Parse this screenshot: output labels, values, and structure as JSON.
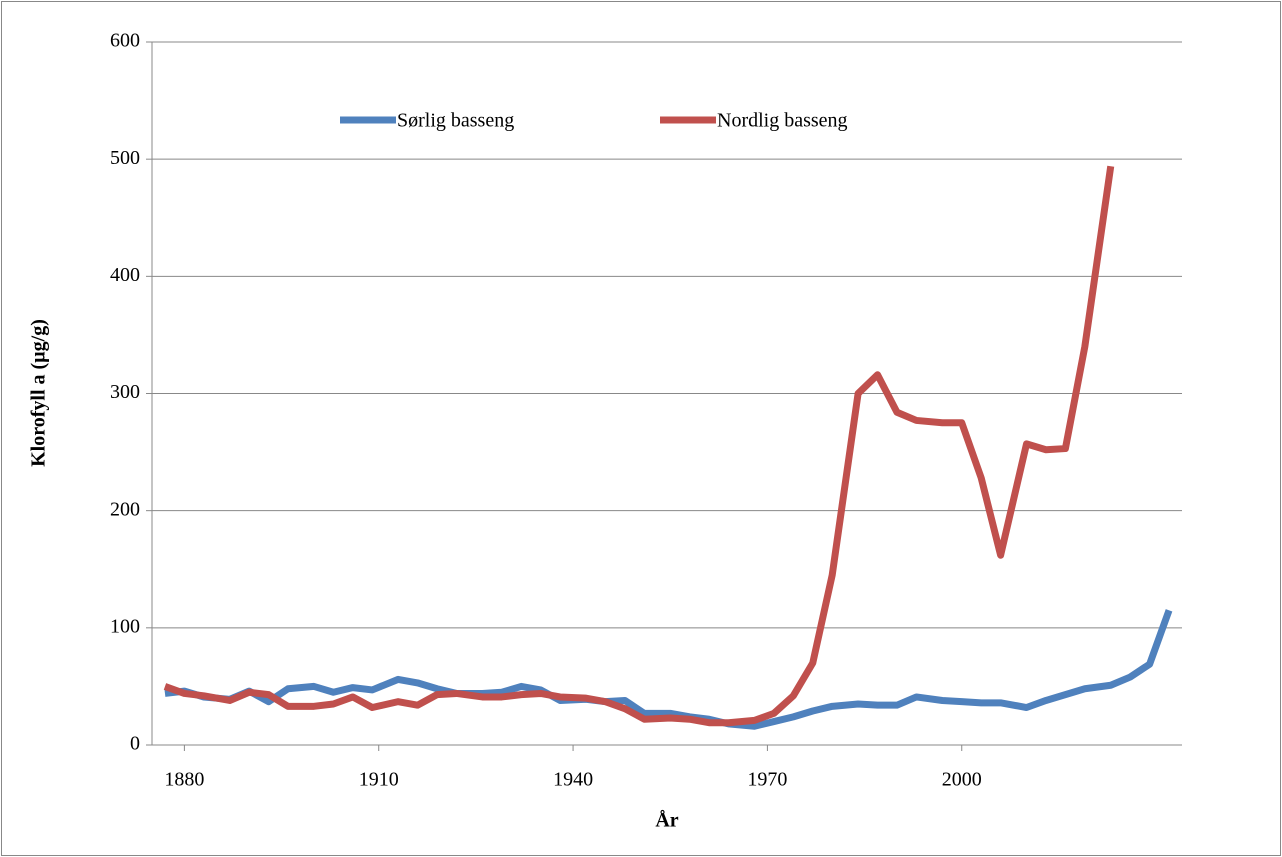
{
  "chart_data": {
    "type": "line",
    "x_label": "År",
    "y_label": "Klorofyll a (µg/g)",
    "x": [
      1877,
      1880,
      1883,
      1887,
      1890,
      1893,
      1896,
      1900,
      1903,
      1906,
      1909,
      1913,
      1916,
      1919,
      1922,
      1926,
      1929,
      1932,
      1935,
      1938,
      1942,
      1945,
      1948,
      1951,
      1955,
      1958,
      1961,
      1964,
      1968,
      1971,
      1974,
      1977,
      1980,
      1984,
      1987,
      1990,
      1993,
      1997,
      2000,
      2003,
      2006,
      2010,
      2013,
      2016,
      2019,
      2023,
      2026,
      2029,
      2032
    ],
    "series": [
      {
        "name": "Sørlig basseng",
        "color": "#4f81bd",
        "values": [
          44,
          46,
          41,
          39,
          46,
          37,
          48,
          50,
          45,
          49,
          47,
          56,
          53,
          48,
          44,
          44,
          45,
          50,
          47,
          38,
          39,
          37,
          38,
          27,
          27,
          24,
          22,
          18,
          16,
          20,
          24,
          29,
          33,
          35,
          34,
          34,
          41,
          38,
          37,
          36,
          36,
          32,
          38,
          43,
          48,
          51,
          58,
          69,
          115
        ]
      },
      {
        "name": "Nordlig basseng",
        "color": "#c0504d",
        "values": [
          50,
          44,
          42,
          38,
          45,
          43,
          33,
          33,
          35,
          41,
          32,
          37,
          34,
          43,
          44,
          41,
          41,
          43,
          44,
          41,
          40,
          37,
          31,
          22,
          23,
          22,
          19,
          19,
          21,
          27,
          42,
          70,
          145,
          300,
          316,
          284,
          277,
          275,
          275,
          228,
          162,
          257,
          252,
          253,
          340,
          494,
          null,
          null,
          null
        ]
      }
    ],
    "xlim": [
      1875,
      2034
    ],
    "xticks": [
      1880,
      1910,
      1940,
      1970,
      2000
    ],
    "ylim": [
      0,
      600
    ],
    "yticks": [
      0,
      100,
      200,
      300,
      400,
      500,
      600
    ],
    "grid": true,
    "legend": "top"
  }
}
